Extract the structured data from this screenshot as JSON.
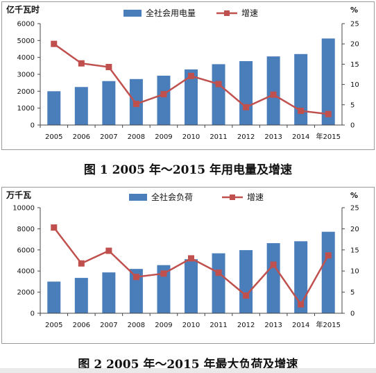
{
  "chart_data": [
    {
      "type": "bar+line",
      "title": "",
      "y_left_label": "亿千瓦时",
      "y_right_label": "%",
      "legend": [
        "全社会用电量",
        "增速"
      ],
      "legend_position": "top",
      "categories": [
        "2005",
        "2006",
        "2007",
        "2008",
        "2009",
        "2010",
        "2011",
        "2012",
        "2013",
        "2014",
        "2015"
      ],
      "x_tick_labels": [
        "2005",
        "2006",
        "2007",
        "2008",
        "2009",
        "2010",
        "2011",
        "2012",
        "2013",
        "2014",
        "年2015"
      ],
      "bars": [
        2000,
        2250,
        2600,
        2720,
        2920,
        3290,
        3600,
        3780,
        4060,
        4200,
        5120
      ],
      "line": [
        20.0,
        15.2,
        14.3,
        5.2,
        7.6,
        12.1,
        10.1,
        4.4,
        7.5,
        3.5,
        2.7
      ],
      "y_left_ticks": [
        "0",
        "1000",
        "2000",
        "3000",
        "4000",
        "5000",
        "6000"
      ],
      "y_right_ticks": [
        "0",
        "5",
        "10",
        "15",
        "20",
        "25"
      ],
      "ylim_left": [
        0,
        6000
      ],
      "ylim_right": [
        0,
        25
      ],
      "bar_color": "#4a7ebb",
      "line_color": "#c0504d",
      "grid": false
    },
    {
      "type": "bar+line",
      "title": "",
      "y_left_label": "万千瓦",
      "y_right_label": "%",
      "legend": [
        "全社会负荷",
        "增速"
      ],
      "legend_position": "top",
      "categories": [
        "2005",
        "2006",
        "2007",
        "2008",
        "2009",
        "2010",
        "2011",
        "2012",
        "2013",
        "2014",
        "2015"
      ],
      "x_tick_labels": [
        "2005",
        "2006",
        "2007",
        "2008",
        "2009",
        "2010",
        "2011",
        "2012",
        "2013",
        "2014",
        "年2015"
      ],
      "bars": [
        3000,
        3350,
        3870,
        4200,
        4560,
        5120,
        5680,
        5980,
        6640,
        6820,
        7720
      ],
      "line": [
        20.3,
        11.8,
        14.8,
        8.6,
        9.4,
        13.0,
        9.6,
        4.2,
        11.5,
        2.1,
        13.7
      ],
      "y_left_ticks": [
        "0",
        "2000",
        "4000",
        "6000",
        "8000",
        "10000"
      ],
      "y_right_ticks": [
        "0",
        "5",
        "10",
        "15",
        "20",
        "25"
      ],
      "ylim_left": [
        0,
        10000
      ],
      "ylim_right": [
        0,
        25
      ],
      "bar_color": "#4a7ebb",
      "line_color": "#c0504d",
      "grid": false
    }
  ],
  "captions": {
    "fig1": "图 1   2005 年～2015 年用电量及增速",
    "fig2": "图 2   2005 年～2015 年最大负荷及增速"
  }
}
